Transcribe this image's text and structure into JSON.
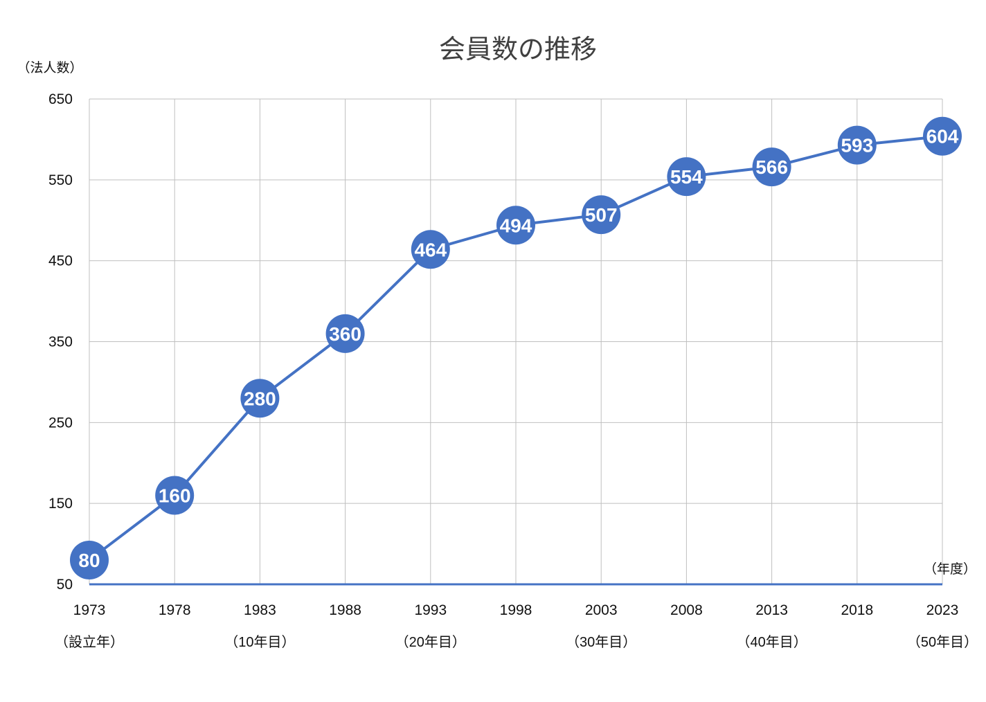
{
  "chart_data": {
    "type": "line",
    "title": "会員数の推移",
    "ylabel": "（法人数）",
    "xlabel": "（年度）",
    "categories": [
      "1973",
      "1978",
      "1983",
      "1988",
      "1993",
      "1998",
      "2003",
      "2008",
      "2013",
      "2018",
      "2023"
    ],
    "category_sublabels": [
      "（設立年）",
      "",
      "（10年目）",
      "",
      "（20年目）",
      "",
      "（30年目）",
      "",
      "（40年目）",
      "",
      "（50年目）"
    ],
    "series": [
      {
        "values": [
          80,
          160,
          280,
          360,
          464,
          494,
          507,
          554,
          566,
          593,
          604
        ]
      }
    ],
    "ylim": [
      50,
      650
    ],
    "yticks": [
      50,
      150,
      250,
      350,
      450,
      550,
      650
    ],
    "grid": true,
    "data_labels": true,
    "colors": {
      "line": "#4472C4",
      "grid": "#BFBFBF",
      "axis": "#4472C4"
    }
  }
}
